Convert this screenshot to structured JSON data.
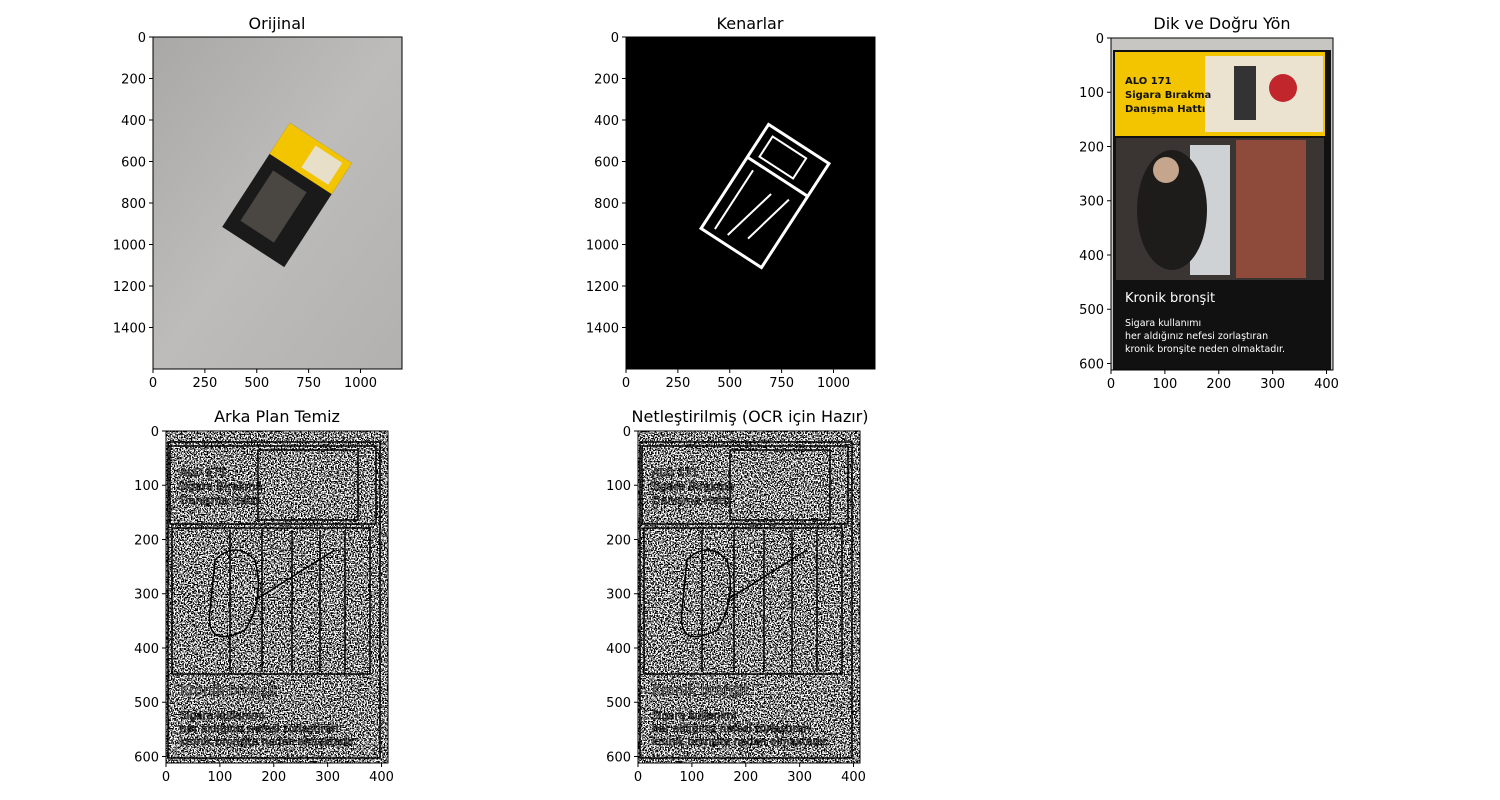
{
  "figure": {
    "panels": [
      {
        "title": "Orijinal",
        "x_ticks": [
          "0",
          "250",
          "500",
          "750",
          "1000"
        ],
        "y_ticks": [
          "0",
          "200",
          "400",
          "600",
          "800",
          "1000",
          "1200",
          "1400"
        ]
      },
      {
        "title": "Kenarlar",
        "x_ticks": [
          "0",
          "250",
          "500",
          "750",
          "1000"
        ],
        "y_ticks": [
          "0",
          "200",
          "400",
          "600",
          "800",
          "1000",
          "1200",
          "1400"
        ]
      },
      {
        "title": "Dik ve Doğru Yön",
        "x_ticks": [
          "0",
          "100",
          "200",
          "300",
          "400"
        ],
        "y_ticks": [
          "0",
          "100",
          "200",
          "300",
          "400",
          "500",
          "600"
        ]
      },
      {
        "title": "Arka Plan Temiz",
        "x_ticks": [
          "0",
          "100",
          "200",
          "300",
          "400"
        ],
        "y_ticks": [
          "0",
          "100",
          "200",
          "300",
          "400",
          "500",
          "600"
        ]
      },
      {
        "title": "Netleştirilmiş (OCR için Hazır)",
        "x_ticks": [
          "0",
          "100",
          "200",
          "300",
          "400"
        ],
        "y_ticks": [
          "0",
          "100",
          "200",
          "300",
          "400",
          "500",
          "600"
        ]
      }
    ],
    "pack_text": {
      "alo": "ALO 171",
      "sigara": "Sigara Bırakma",
      "danisma": "Danışma Hattı",
      "heading": "Kronik bronşit",
      "line1": "Sigara kullanımı",
      "line2": "her aldığınız nefesi zorlaştıran",
      "line3": "kronik bronşite neden olmaktadır."
    },
    "colors": {
      "pack_yellow": "#f2c500",
      "pack_black": "#111111",
      "photo_gray": "#b9b8b6"
    }
  }
}
